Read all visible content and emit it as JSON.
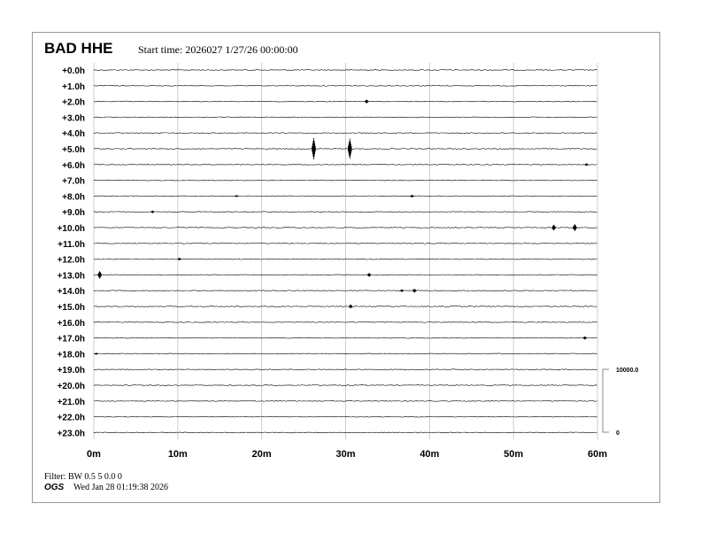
{
  "header": {
    "station": "BAD HHE",
    "start_time": "Start time: 2026027  1/27/26 00:00:00"
  },
  "footer": {
    "filter": "Filter: BW 0.5 5 0.0 0",
    "org": "OGS",
    "timestamp": "Wed Jan 28 01:19:38 2026"
  },
  "chart_data": {
    "type": "line",
    "subtype": "helicorder",
    "xlabel": "",
    "ylabel": "",
    "x_ticks": [
      "0m",
      "10m",
      "20m",
      "30m",
      "40m",
      "50m",
      "60m"
    ],
    "xlim": [
      0,
      60
    ],
    "row_labels": [
      "+0.0h",
      "+1.0h",
      "+2.0h",
      "+3.0h",
      "+4.0h",
      "+5.0h",
      "+6.0h",
      "+7.0h",
      "+8.0h",
      "+9.0h",
      "+10.0h",
      "+11.0h",
      "+12.0h",
      "+13.0h",
      "+14.0h",
      "+15.0h",
      "+16.0h",
      "+17.0h",
      "+18.0h",
      "+19.0h",
      "+20.0h",
      "+21.0h",
      "+22.0h",
      "+23.0h"
    ],
    "grid": true,
    "scale_bar": {
      "top_label": "10000.0",
      "bottom_label": "0",
      "counts": 10000
    },
    "trace_color": "#000000",
    "grid_color": "#cccccc",
    "events": [
      {
        "row": 2,
        "minute": 32.5,
        "amplitude": 300
      },
      {
        "row": 5,
        "minute": 26.2,
        "amplitude": 1700
      },
      {
        "row": 5,
        "minute": 30.5,
        "amplitude": 1600
      },
      {
        "row": 6,
        "minute": 58.7,
        "amplitude": 200
      },
      {
        "row": 8,
        "minute": 17.0,
        "amplitude": 150
      },
      {
        "row": 8,
        "minute": 37.9,
        "amplitude": 200
      },
      {
        "row": 9,
        "minute": 7.0,
        "amplitude": 200
      },
      {
        "row": 10,
        "minute": 54.8,
        "amplitude": 450
      },
      {
        "row": 10,
        "minute": 57.3,
        "amplitude": 550
      },
      {
        "row": 12,
        "minute": 10.2,
        "amplitude": 200
      },
      {
        "row": 13,
        "minute": 0.7,
        "amplitude": 600
      },
      {
        "row": 13,
        "minute": 32.8,
        "amplitude": 300
      },
      {
        "row": 14,
        "minute": 36.7,
        "amplitude": 200
      },
      {
        "row": 14,
        "minute": 38.2,
        "amplitude": 300
      },
      {
        "row": 15,
        "minute": 30.6,
        "amplitude": 300
      },
      {
        "row": 17,
        "minute": 58.5,
        "amplitude": 250
      },
      {
        "row": 18,
        "minute": 0.3,
        "amplitude": 150
      }
    ]
  }
}
